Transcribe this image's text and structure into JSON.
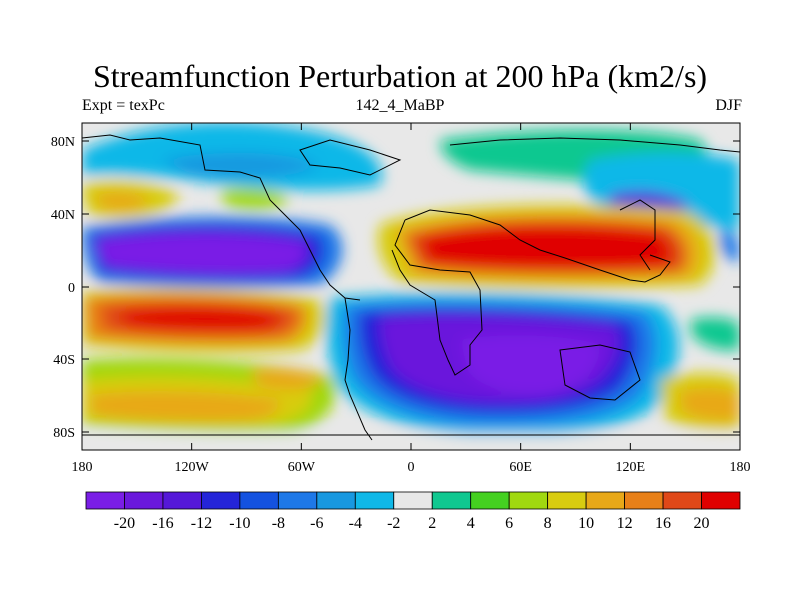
{
  "title": "Streamfunction Perturbation at 200 hPa (km2/s)",
  "subtitle_left": "Expt = texPc",
  "subtitle_center": "142_4_MaBP",
  "subtitle_right": "DJF",
  "lat_labels": [
    "80N",
    "40N",
    "0",
    "40S",
    "80S"
  ],
  "lon_labels": [
    "180",
    "120W",
    "60W",
    "0",
    "60E",
    "120E",
    "180"
  ],
  "colorbar": {
    "colors": [
      "#7a1ee6",
      "#6a18dc",
      "#5518d8",
      "#2424d8",
      "#1452e0",
      "#1e78e8",
      "#1898e0",
      "#10b8e8",
      "#e8e8e8",
      "#10c890",
      "#44d020",
      "#a0d810",
      "#d8cc10",
      "#e8a818",
      "#e88018",
      "#e04818",
      "#e00000"
    ],
    "labels": [
      "-20",
      "-16",
      "-12",
      "-10",
      "-8",
      "-6",
      "-4",
      "-2",
      "2",
      "4",
      "6",
      "8",
      "10",
      "12",
      "16",
      "20"
    ]
  }
}
